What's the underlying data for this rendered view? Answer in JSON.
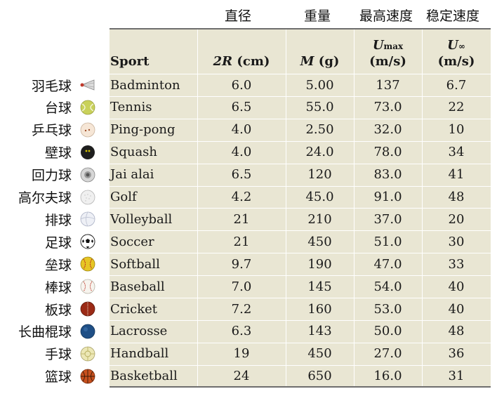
{
  "zh_headers": {
    "diameter": "直径",
    "weight": "重量",
    "umax": "最高速度",
    "uinf": "稳定速度"
  },
  "columns": {
    "sport": "Sport",
    "diameter_var": "2R",
    "diameter_unit": "(cm)",
    "mass_var": "M",
    "mass_unit": "(g)",
    "umax_var": "U",
    "umax_sub": "max",
    "umax_unit": "(m/s)",
    "uinf_var": "U",
    "uinf_sub": "∞",
    "uinf_unit": "(m/s)"
  },
  "rows": [
    {
      "zh": "羽毛球",
      "sport": "Badminton",
      "diameter": "6.0",
      "mass": "5.00",
      "umax": "137",
      "uinf": "6.7",
      "ball_icon": "shuttlecock-icon"
    },
    {
      "zh": "台球",
      "sport": "Tennis",
      "diameter": "6.5",
      "mass": "55.0",
      "umax": "73.0",
      "uinf": "22",
      "ball_icon": "tennis-ball-icon"
    },
    {
      "zh": "乒乓球",
      "sport": "Ping-pong",
      "diameter": "4.0",
      "mass": "2.50",
      "umax": "32.0",
      "uinf": "10",
      "ball_icon": "ping-pong-ball-icon"
    },
    {
      "zh": "壁球",
      "sport": "Squash",
      "diameter": "4.0",
      "mass": "24.0",
      "umax": "78.0",
      "uinf": "34",
      "ball_icon": "squash-ball-icon"
    },
    {
      "zh": "回力球",
      "sport": "Jai alai",
      "diameter": "6.5",
      "mass": "120",
      "umax": "83.0",
      "uinf": "41",
      "ball_icon": "jai-alai-ball-icon"
    },
    {
      "zh": "高尔夫球",
      "sport": "Golf",
      "diameter": "4.2",
      "mass": "45.0",
      "umax": "91.0",
      "uinf": "48",
      "ball_icon": "golf-ball-icon"
    },
    {
      "zh": "排球",
      "sport": "Volleyball",
      "diameter": "21",
      "mass": "210",
      "umax": "37.0",
      "uinf": "20",
      "ball_icon": "volleyball-icon"
    },
    {
      "zh": "足球",
      "sport": "Soccer",
      "diameter": "21",
      "mass": "450",
      "umax": "51.0",
      "uinf": "30",
      "ball_icon": "soccer-ball-icon"
    },
    {
      "zh": "垒球",
      "sport": "Softball",
      "diameter": "9.7",
      "mass": "190",
      "umax": "47.0",
      "uinf": "33",
      "ball_icon": "softball-icon"
    },
    {
      "zh": "棒球",
      "sport": "Baseball",
      "diameter": "7.0",
      "mass": "145",
      "umax": "54.0",
      "uinf": "40",
      "ball_icon": "baseball-icon"
    },
    {
      "zh": "板球",
      "sport": "Cricket",
      "diameter": "7.2",
      "mass": "160",
      "umax": "53.0",
      "uinf": "40",
      "ball_icon": "cricket-ball-icon"
    },
    {
      "zh": "长曲棍球",
      "sport": "Lacrosse",
      "diameter": "6.3",
      "mass": "143",
      "umax": "50.0",
      "uinf": "48",
      "ball_icon": "lacrosse-ball-icon"
    },
    {
      "zh": "手球",
      "sport": "Handball",
      "diameter": "19",
      "mass": "450",
      "umax": "27.0",
      "uinf": "36",
      "ball_icon": "handball-icon"
    },
    {
      "zh": "篮球",
      "sport": "Basketball",
      "diameter": "24",
      "mass": "650",
      "umax": "16.0",
      "uinf": "31",
      "ball_icon": "basketball-icon"
    }
  ],
  "colors": {
    "table_bg": "#e9e6d3",
    "rule": "#6e6e6e"
  }
}
